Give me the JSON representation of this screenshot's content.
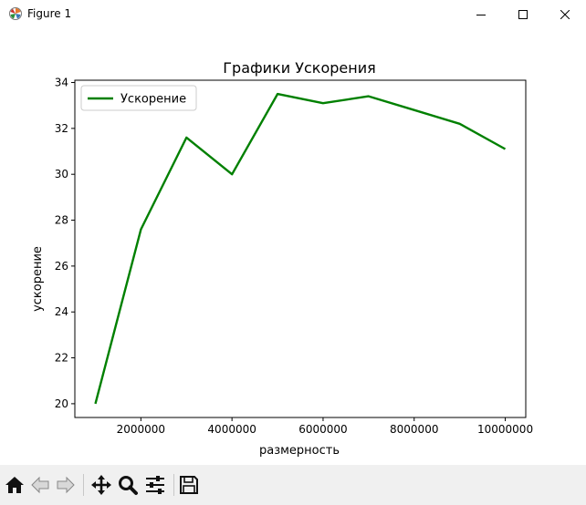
{
  "window": {
    "title": "Figure 1"
  },
  "toolbar": {
    "buttons": [
      {
        "name": "home-icon",
        "label": "Home"
      },
      {
        "name": "back-arrow-icon",
        "label": "Back"
      },
      {
        "name": "forward-arrow-icon",
        "label": "Forward"
      },
      {
        "name": "pan-icon",
        "label": "Pan"
      },
      {
        "name": "zoom-icon",
        "label": "Zoom"
      },
      {
        "name": "subplots-icon",
        "label": "Subplots"
      },
      {
        "name": "save-icon",
        "label": "Save"
      }
    ]
  },
  "chart_data": {
    "type": "line",
    "title": "Графики Ускорения",
    "xlabel": "размерность",
    "ylabel": "ускорение",
    "x": [
      1000000,
      2000000,
      3000000,
      4000000,
      5000000,
      6000000,
      7000000,
      8000000,
      9000000,
      10000000
    ],
    "xticks": [
      2000000,
      4000000,
      6000000,
      8000000,
      10000000
    ],
    "xtick_labels": [
      "2000000",
      "4000000",
      "6000000",
      "8000000",
      "10000000"
    ],
    "yticks": [
      20,
      22,
      24,
      26,
      28,
      30,
      32,
      34
    ],
    "ytick_labels": [
      "20",
      "22",
      "24",
      "26",
      "28",
      "30",
      "32",
      "34"
    ],
    "xlim": [
      550000,
      10450000
    ],
    "ylim": [
      19.4,
      34.1
    ],
    "series": [
      {
        "name": "Ускорение",
        "color": "#008000",
        "values": [
          20.0,
          27.6,
          31.6,
          30.0,
          33.5,
          33.1,
          33.4,
          32.8,
          32.2,
          31.1
        ]
      }
    ],
    "legend": "upper-left",
    "grid": false
  }
}
